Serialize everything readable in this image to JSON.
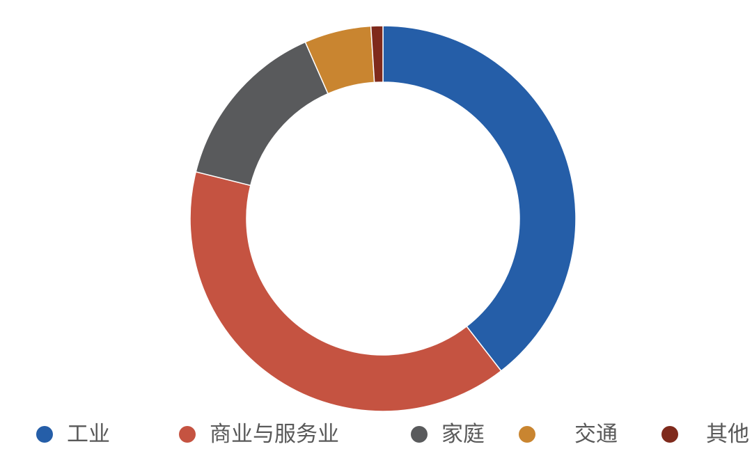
{
  "chart_data": {
    "type": "pie",
    "donut": true,
    "title": "",
    "legend_position": "bottom",
    "categories": [
      "工业",
      "商业与服务业",
      "家庭",
      "交通",
      "其他"
    ],
    "values": [
      39.5,
      39.4,
      14.5,
      5.6,
      1.0
    ],
    "colors": [
      "#255ea8",
      "#c55341",
      "#595a5c",
      "#c98530",
      "#7f2a1c"
    ],
    "start_angle_deg": 0,
    "direction": "clockwise"
  }
}
